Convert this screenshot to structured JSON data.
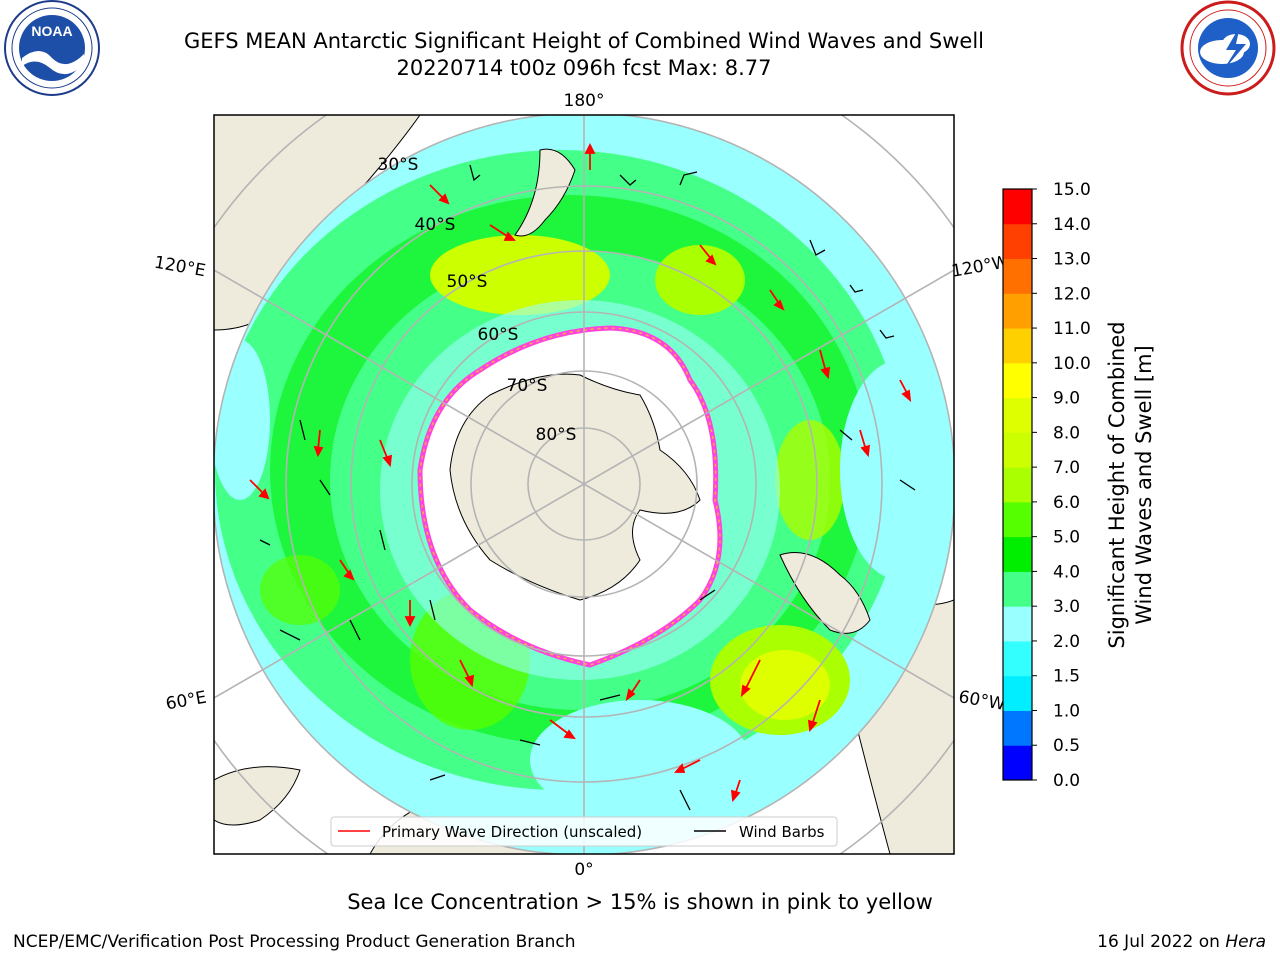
{
  "title": {
    "line1": "GEFS MEAN Antarctic Significant Height of Combined Wind Waves and Swell",
    "line2": "20220714 t00z 096h fcst   Max: 8.77"
  },
  "logos": {
    "left": {
      "text": "NOAA",
      "ring_text": "NATIONAL OCEANIC AND ATMOSPHERIC ADMINISTRATION · U.S. DEPARTMENT OF COMMERCE"
    },
    "right": {
      "ring_text": "NATIONAL WEATHER SERVICE"
    }
  },
  "map": {
    "projection": "south-polar-stereographic",
    "longitude_labels": {
      "top": "180°",
      "bottom": "0°",
      "left_upper": "120°E",
      "left_lower": "60°E",
      "right_upper": "120°W",
      "right_lower": "60°W"
    },
    "latitude_labels": [
      "30°S",
      "40°S",
      "50°S",
      "60°S",
      "70°S",
      "80°S"
    ],
    "legend": {
      "items": [
        {
          "label": "Primary Wave Direction (unscaled)",
          "color": "#ff0000"
        },
        {
          "label": "Wind Barbs",
          "color": "#000000"
        }
      ]
    }
  },
  "colorbar": {
    "label_line1": "Significant Height of Combined",
    "label_line2": "Wind Waves and Swell [m]",
    "ticks": [
      "0.0",
      "0.5",
      "1.0",
      "1.5",
      "2.0",
      "3.0",
      "4.0",
      "5.0",
      "6.0",
      "7.0",
      "8.0",
      "9.0",
      "10.0",
      "11.0",
      "12.0",
      "13.0",
      "14.0",
      "15.0"
    ],
    "colors": [
      "#0000ff",
      "#0077ff",
      "#00eeff",
      "#33ffff",
      "#99ffff",
      "#44ff88",
      "#00ee00",
      "#55ff00",
      "#aaff00",
      "#ccff00",
      "#ddff00",
      "#ffff00",
      "#ffd000",
      "#ffa000",
      "#ff7000",
      "#ff4000",
      "#ff0000"
    ]
  },
  "notes": {
    "ice": "Sea Ice Concentration > 15% is shown in pink to yellow",
    "footer_left": "NCEP/EMC/Verification Post Processing Product Generation Branch",
    "footer_right_date": "16 Jul 2022 on",
    "footer_right_machine": "Hera"
  }
}
